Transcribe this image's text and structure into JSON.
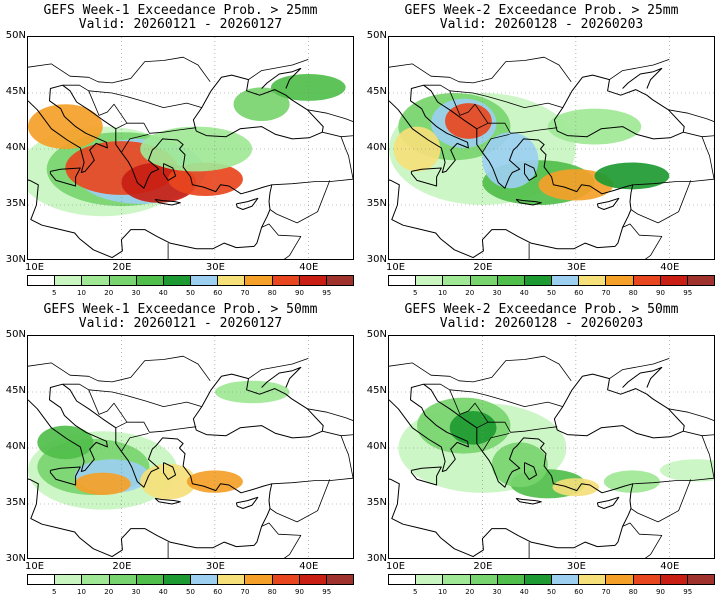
{
  "panels": [
    {
      "title": "GEFS Week-1 Exceedance Prob. > 25mm",
      "valid": "Valid: 20260121 - 20260127",
      "intensity": 1.0
    },
    {
      "title": "GEFS Week-2 Exceedance Prob. > 25mm",
      "valid": "Valid: 20260128 - 20260203",
      "intensity": 0.85
    },
    {
      "title": "GEFS Week-1 Exceedance Prob. > 50mm",
      "valid": "Valid: 20260121 - 20260127",
      "intensity": 0.7
    },
    {
      "title": "GEFS Week-2 Exceedance Prob. > 50mm",
      "valid": "Valid: 20260128 - 20260203",
      "intensity": 0.55
    }
  ],
  "axes": {
    "lat_labels": [
      "50N",
      "45N",
      "40N",
      "35N",
      "30N"
    ],
    "lon_labels": [
      "10E",
      "20E",
      "30E",
      "40E"
    ],
    "lat_range": [
      30,
      50
    ],
    "lon_range": [
      10,
      45
    ]
  },
  "colorbar": {
    "labels": [
      "5",
      "10",
      "20",
      "30",
      "40",
      "50",
      "60",
      "70",
      "80",
      "90",
      "95"
    ],
    "colors": [
      "#ffffff",
      "#c8f5c0",
      "#a0e896",
      "#78d46e",
      "#50be4a",
      "#1e9a32",
      "#9ccff0",
      "#f5e07a",
      "#f5a028",
      "#e8461e",
      "#c81e14",
      "#a0322d"
    ]
  }
}
